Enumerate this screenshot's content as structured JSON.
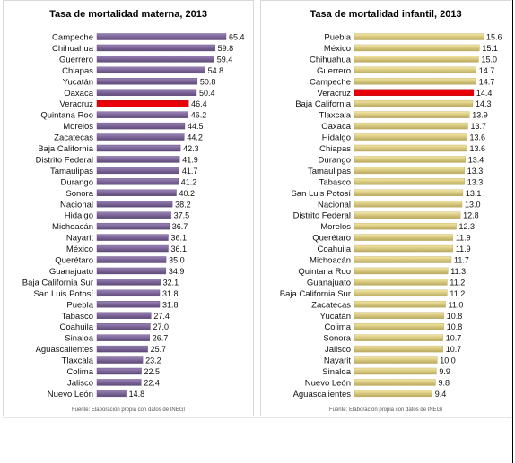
{
  "chart_data": [
    {
      "type": "bar",
      "orientation": "horizontal",
      "title": "Tasa de mortalidad materna, 2013",
      "source_note": "Fuente: Elaboración propia con datos de INEGI",
      "highlight": "Veracruz",
      "colors": {
        "bar": "#9b83b8",
        "bar_dark": "#5e4a78",
        "highlight": "#e8000b"
      },
      "categories": [
        "Campeche",
        "Chihuahua",
        "Guerrero",
        "Chiapas",
        "Yucatán",
        "Oaxaca",
        "Veracruz",
        "Quintana Roo",
        "Morelos",
        "Zacatecas",
        "Baja California",
        "Distrito Federal",
        "Tamaulipas",
        "Durango",
        "Sonora",
        "Nacional",
        "Hidalgo",
        "Michoacán",
        "Nayarit",
        "México",
        "Querétaro",
        "Guanajuato",
        "Baja California Sur",
        "San Luis Potosí",
        "Puebla",
        "Tabasco",
        "Coahuila",
        "Sinaloa",
        "Aguascalientes",
        "Tlaxcala",
        "Colima",
        "Jalisco",
        "Nuevo León"
      ],
      "values": [
        65.4,
        59.8,
        59.4,
        54.8,
        50.8,
        50.4,
        46.4,
        46.2,
        44.5,
        44.2,
        42.3,
        41.9,
        41.7,
        41.2,
        40.2,
        38.2,
        37.5,
        36.7,
        36.1,
        36.1,
        35.0,
        34.9,
        32.1,
        31.8,
        31.8,
        27.4,
        27.0,
        26.7,
        25.7,
        23.2,
        22.5,
        22.4,
        14.8
      ],
      "labels": [
        "65.4",
        "59.8",
        "59.4",
        "54.8",
        "50.8",
        "50.4",
        "46.4",
        "46.2",
        "44.5",
        "44.2",
        "42.3",
        "41.9",
        "41.7",
        "41.2",
        "40.2",
        "38.2",
        "37.5",
        "36.7",
        "36.1",
        "36.1",
        "35.0",
        "34.9",
        "32.1",
        "31.8",
        "31.8",
        "27.4",
        "27.0",
        "26.7",
        "25.7",
        "23.2",
        "22.5",
        "22.4",
        "14.8"
      ],
      "xlim": [
        0,
        65.4
      ]
    },
    {
      "type": "bar",
      "orientation": "horizontal",
      "title": "Tasa de mortalidad infantil, 2013",
      "source_note": "Fuente: Elaboración propia con datos de INEGI",
      "highlight": "Veracruz",
      "colors": {
        "bar": "#f5e8a3",
        "bar_dark": "#b9a95e",
        "highlight": "#e8000b"
      },
      "categories": [
        "Puebla",
        "México",
        "Chihuahua",
        "Guerrero",
        "Campeche",
        "Veracruz",
        "Baja California",
        "Tlaxcala",
        "Oaxaca",
        "Hidalgo",
        "Chiapas",
        "Durango",
        "Tamaulipas",
        "Tabasco",
        "San Luis Potosí",
        "Nacional",
        "Distrito Federal",
        "Morelos",
        "Querétaro",
        "Coahuila",
        "Michoacán",
        "Quintana Roo",
        "Guanajuato",
        "Baja California Sur",
        "Zacatecas",
        "Yucatán",
        "Colima",
        "Sonora",
        "Jalisco",
        "Nayarit",
        "Sinaloa",
        "Nuevo León",
        "Aguascalientes"
      ],
      "values": [
        15.6,
        15.1,
        15.0,
        14.7,
        14.7,
        14.4,
        14.3,
        13.9,
        13.7,
        13.6,
        13.6,
        13.4,
        13.3,
        13.3,
        13.1,
        13.0,
        12.8,
        12.3,
        11.9,
        11.9,
        11.7,
        11.3,
        11.2,
        11.2,
        11.0,
        10.8,
        10.8,
        10.7,
        10.7,
        10.0,
        9.9,
        9.8,
        9.4
      ],
      "labels": [
        "15.6",
        "15.1",
        "15.0",
        "14.7",
        "14.7",
        "14.4",
        "14.3",
        "13.9",
        "13.7",
        "13.6",
        "13.6",
        "13.4",
        "13.3",
        "13.3",
        "13.1",
        "13.0",
        "12.8",
        "12.3",
        "11.9",
        "11.9",
        "11.7",
        "11.3",
        "11.2",
        "11.2",
        "11.0",
        "10.8",
        "10.8",
        "10.7",
        "10.7",
        "10.0",
        "9.9",
        "9.8",
        "9.4"
      ],
      "xlim": [
        0,
        15.6
      ]
    }
  ]
}
